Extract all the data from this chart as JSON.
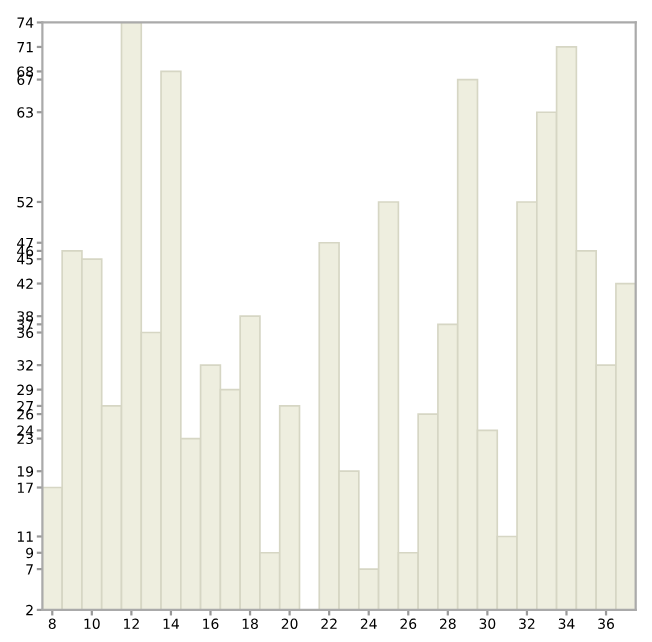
{
  "chart_data": {
    "type": "bar",
    "x": [
      8,
      9,
      10,
      11,
      12,
      13,
      14,
      15,
      16,
      17,
      18,
      19,
      20,
      21,
      22,
      23,
      24,
      25,
      26,
      27,
      28,
      29,
      30,
      31,
      32,
      33,
      34,
      35,
      36,
      37
    ],
    "values": [
      17,
      46,
      45,
      27,
      74,
      36,
      68,
      23,
      32,
      29,
      38,
      9,
      27,
      2,
      47,
      19,
      7,
      52,
      9,
      26,
      37,
      67,
      24,
      11,
      52,
      63,
      71,
      46,
      32,
      42
    ],
    "color": "#eeeedf",
    "xlim": [
      7.5,
      37.5
    ],
    "xticks": [
      8,
      10,
      12,
      14,
      16,
      18,
      20,
      22,
      24,
      26,
      28,
      30,
      32,
      34,
      36
    ],
    "ylim": [
      2,
      74
    ],
    "yticks": [
      2,
      7,
      9,
      11,
      17,
      19,
      23,
      24,
      26,
      27,
      29,
      32,
      36,
      37,
      38,
      42,
      45,
      46,
      47,
      52,
      63,
      67,
      68,
      71,
      74
    ],
    "grid": false,
    "legend": false
  }
}
